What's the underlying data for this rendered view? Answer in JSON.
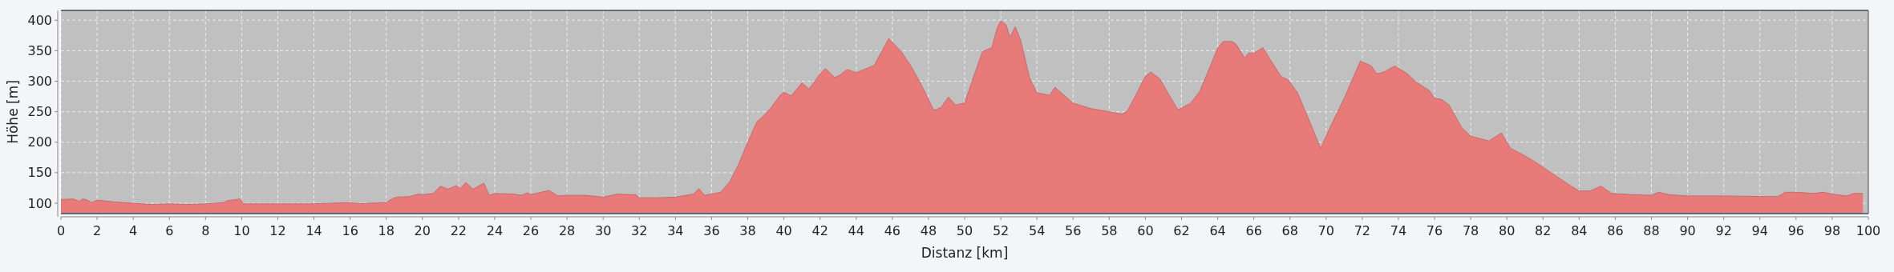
{
  "chart_data": {
    "type": "area",
    "xlabel": "Distanz [km]",
    "ylabel": "Höhe [m]",
    "xlim": [
      0,
      100
    ],
    "ylim": [
      83,
      416
    ],
    "xticks": [
      0,
      2,
      4,
      6,
      8,
      10,
      12,
      14,
      16,
      18,
      20,
      22,
      24,
      26,
      28,
      30,
      32,
      34,
      36,
      38,
      40,
      42,
      44,
      46,
      48,
      50,
      52,
      54,
      56,
      58,
      60,
      62,
      64,
      66,
      68,
      70,
      72,
      74,
      76,
      78,
      80,
      82,
      84,
      86,
      88,
      90,
      92,
      94,
      96,
      98,
      100
    ],
    "yticks": [
      100,
      150,
      200,
      250,
      300,
      350,
      400
    ],
    "grid": true,
    "series": [
      {
        "color": "#e87a7a",
        "x": [
          0,
          0.7,
          1.0,
          1.2,
          1.4,
          1.7,
          2,
          3,
          4,
          5,
          6,
          7,
          8,
          9,
          9.2,
          9.9,
          10.1,
          11,
          12,
          14,
          15.8,
          16.8,
          17,
          18,
          18.3,
          18.6,
          19.3,
          19.8,
          20,
          20.6,
          21,
          21.4,
          21.9,
          22.1,
          22.4,
          22.8,
          23.4,
          23.7,
          24,
          25,
          25.5,
          25.8,
          26,
          27,
          27.5,
          28,
          29,
          30,
          30.8,
          31.5,
          31.8,
          32,
          33,
          34,
          35,
          35.3,
          35.6,
          36,
          36.5,
          37,
          37.5,
          38,
          38.5,
          39,
          39.3,
          39.8,
          40,
          40.4,
          41,
          41.4,
          42,
          42.3,
          42.8,
          43.1,
          43.5,
          44,
          44.5,
          45,
          45.8,
          46.5,
          47,
          47.5,
          48,
          48.3,
          48.7,
          49.1,
          49.5,
          50,
          50.5,
          51,
          51.5,
          51.8,
          52,
          52.3,
          52.5,
          52.8,
          53.1,
          53.6,
          54,
          54.7,
          55,
          55.5,
          56,
          57,
          58,
          58.7,
          59,
          59.5,
          60,
          60.3,
          60.8,
          61.2,
          61.8,
          62.5,
          63,
          63.5,
          64,
          64.3,
          64.8,
          65,
          65.5,
          65.7,
          66,
          66.5,
          67,
          67.5,
          67.9,
          68.4,
          69,
          69.7,
          70.2,
          71,
          71.9,
          72.5,
          72.8,
          73.2,
          73.8,
          74.5,
          75,
          75.7,
          76,
          76.4,
          76.8,
          77.5,
          78,
          79,
          79.7,
          80.2,
          80.8,
          81.5,
          82,
          82.7,
          83.3,
          84,
          84.6,
          85.2,
          85.8,
          87,
          88,
          88.4,
          89,
          90,
          92,
          94,
          95,
          95.4,
          96,
          97,
          97.5,
          98,
          98.8,
          99.2,
          99.7
        ],
        "values": [
          106,
          107,
          103,
          107,
          106,
          101,
          105,
          102,
          100,
          98,
          99,
          98,
          99,
          101,
          104,
          107,
          99,
          99,
          99,
          99,
          101,
          99,
          100,
          101,
          107,
          110,
          111,
          115,
          114,
          116,
          128,
          123,
          129,
          124,
          134,
          123,
          133,
          113,
          116,
          115,
          113,
          117,
          114,
          121,
          112,
          113,
          113,
          110,
          115,
          114,
          114,
          109,
          109,
          110,
          115,
          124,
          113,
          115,
          118,
          135,
          164,
          200,
          233,
          247,
          257,
          277,
          282,
          276,
          297,
          287,
          312,
          321,
          306,
          310,
          319,
          314,
          320,
          326,
          370,
          348,
          326,
          300,
          270,
          252,
          257,
          274,
          261,
          264,
          308,
          349,
          355,
          387,
          399,
          392,
          372,
          389,
          367,
          305,
          281,
          277,
          290,
          277,
          264,
          255,
          250,
          246,
          251,
          279,
          308,
          315,
          304,
          283,
          253,
          264,
          283,
          318,
          354,
          365,
          365,
          361,
          338,
          346,
          346,
          355,
          331,
          308,
          302,
          282,
          240,
          190,
          223,
          272,
          333,
          325,
          312,
          315,
          325,
          312,
          298,
          285,
          272,
          270,
          261,
          224,
          210,
          202,
          215,
          190,
          181,
          169,
          159,
          145,
          133,
          120,
          120,
          128,
          116,
          114,
          113,
          118,
          114,
          112,
          112,
          111,
          111,
          118,
          118,
          116,
          118,
          115,
          112,
          116,
          116
        ]
      }
    ]
  }
}
